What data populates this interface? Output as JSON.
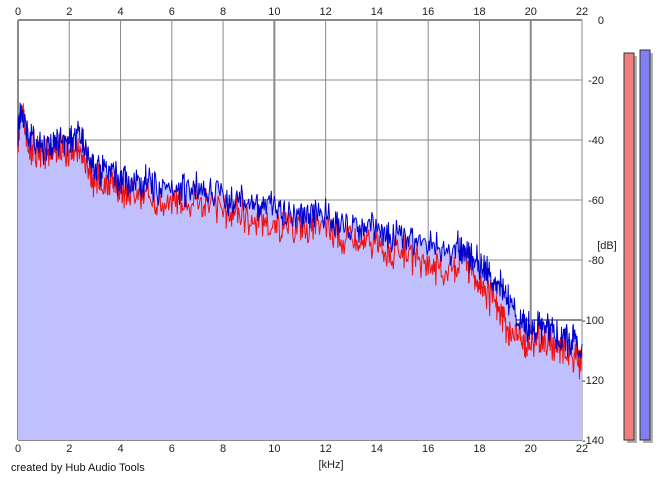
{
  "chart_data": {
    "type": "area",
    "xlabel": "[kHz]",
    "ylabel": "[dB]",
    "xlim": [
      0,
      22
    ],
    "ylim": [
      -140,
      0
    ],
    "x_ticks": [
      0,
      2,
      4,
      6,
      8,
      10,
      12,
      14,
      16,
      18,
      20,
      22
    ],
    "y_ticks": [
      0,
      -20,
      -40,
      -60,
      -80,
      -100,
      -120,
      -140
    ],
    "grid": true,
    "series": [
      {
        "color": "#ee1111",
        "x": [
          0,
          0.1,
          0.25,
          0.4,
          0.6,
          0.8,
          1.0,
          1.2,
          1.4,
          1.6,
          1.8,
          2.0,
          2.2,
          2.4,
          2.6,
          2.8,
          3.0,
          3.2,
          3.4,
          3.6,
          3.8,
          4.0,
          4.2,
          4.5,
          4.8,
          5.0,
          5.3,
          5.6,
          6.0,
          6.3,
          6.6,
          7.0,
          7.3,
          7.6,
          8.0,
          8.3,
          8.6,
          9.0,
          9.3,
          9.6,
          10.0,
          10.3,
          10.6,
          11.0,
          11.3,
          11.6,
          12.0,
          12.3,
          12.6,
          13.0,
          13.3,
          13.6,
          14.0,
          14.3,
          14.6,
          15.0,
          15.3,
          15.6,
          16.0,
          16.3,
          16.6,
          17.0,
          17.2,
          17.4,
          17.6,
          17.8,
          18.0,
          18.2,
          18.4,
          18.6,
          18.8,
          19.0,
          19.2,
          19.4,
          19.6,
          19.8,
          20.0,
          20.2,
          20.4,
          20.6,
          20.8,
          21.0,
          21.2,
          21.4,
          21.6,
          21.8,
          22.0
        ],
        "values": [
          -40,
          -25,
          -33,
          -40,
          -40,
          -41,
          -42,
          -41,
          -43,
          -40,
          -41,
          -42,
          -40,
          -41,
          -44,
          -50,
          -52,
          -51,
          -53,
          -52,
          -54,
          -54,
          -55,
          -56,
          -57,
          -56,
          -58,
          -59,
          -58,
          -57,
          -59,
          -58,
          -59,
          -60,
          -61,
          -62,
          -61,
          -64,
          -65,
          -64,
          -66,
          -67,
          -66,
          -66,
          -68,
          -67,
          -67,
          -69,
          -71,
          -71,
          -73,
          -72,
          -72,
          -75,
          -76,
          -74,
          -77,
          -79,
          -78,
          -80,
          -82,
          -80,
          -79,
          -75,
          -81,
          -82,
          -84,
          -88,
          -91,
          -92,
          -95,
          -100,
          -103,
          -102,
          -104,
          -105,
          -104,
          -105,
          -104,
          -106,
          -105,
          -107,
          -106,
          -108,
          -110,
          -110,
          -112
        ]
      },
      {
        "color": "#0000cc",
        "x": [
          0,
          0.1,
          0.25,
          0.4,
          0.6,
          0.8,
          1.0,
          1.2,
          1.4,
          1.6,
          1.8,
          2.0,
          2.2,
          2.4,
          2.6,
          2.8,
          3.0,
          3.2,
          3.4,
          3.6,
          3.8,
          4.0,
          4.2,
          4.5,
          4.8,
          5.0,
          5.3,
          5.6,
          6.0,
          6.3,
          6.6,
          7.0,
          7.3,
          7.6,
          8.0,
          8.3,
          8.6,
          9.0,
          9.3,
          9.6,
          10.0,
          10.3,
          10.6,
          11.0,
          11.3,
          11.6,
          12.0,
          12.3,
          12.6,
          13.0,
          13.3,
          13.6,
          14.0,
          14.3,
          14.6,
          15.0,
          15.3,
          15.6,
          16.0,
          16.3,
          16.6,
          17.0,
          17.2,
          17.4,
          17.6,
          17.8,
          18.0,
          18.2,
          18.4,
          18.6,
          18.8,
          19.0,
          19.2,
          19.4,
          19.6,
          19.8,
          20.0,
          20.2,
          20.4,
          20.6,
          20.8,
          21.0,
          21.2,
          21.4,
          21.6,
          21.8,
          22.0
        ],
        "values": [
          -35,
          -28,
          -30,
          -36,
          -38,
          -38,
          -40,
          -39,
          -40,
          -38,
          -39,
          -38,
          -37,
          -37,
          -40,
          -44,
          -46,
          -47,
          -48,
          -48,
          -50,
          -51,
          -51,
          -52,
          -53,
          -52,
          -54,
          -55,
          -54,
          -53,
          -55,
          -54,
          -55,
          -56,
          -57,
          -58,
          -56,
          -58,
          -59,
          -59,
          -61,
          -62,
          -62,
          -62,
          -63,
          -62,
          -63,
          -64,
          -65,
          -66,
          -67,
          -67,
          -68,
          -69,
          -70,
          -70,
          -71,
          -72,
          -72,
          -73,
          -74,
          -74,
          -74,
          -74,
          -76,
          -77,
          -79,
          -81,
          -84,
          -85,
          -86,
          -88,
          -92,
          -96,
          -98,
          -99,
          -100,
          -101,
          -100,
          -101,
          -102,
          -102,
          -103,
          -104,
          -104,
          -106,
          -108
        ]
      }
    ],
    "fill_color": "#c0c0ff",
    "meter_colors": [
      "#f08080",
      "#8080f0"
    ],
    "meter_levels_db": [
      -11,
      -10
    ]
  },
  "footer": {
    "credit": "created by Hub Audio Tools"
  }
}
